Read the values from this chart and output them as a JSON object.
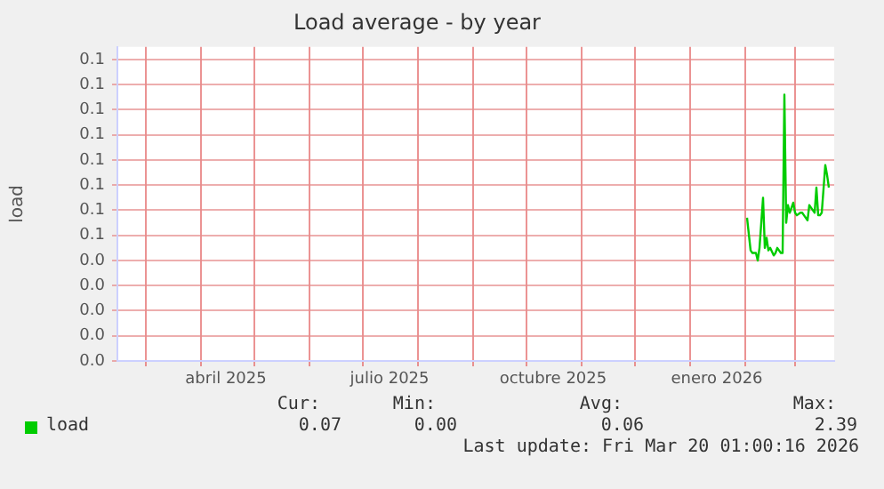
{
  "chart_data": {
    "type": "line",
    "title": "Load average - by year",
    "ylabel": "load",
    "x": [
      "2026-02-02",
      "2026-02-04",
      "2026-02-05",
      "2026-02-07",
      "2026-02-08",
      "2026-02-09",
      "2026-02-11",
      "2026-02-12",
      "2026-02-13",
      "2026-02-14",
      "2026-02-15",
      "2026-02-17",
      "2026-02-18",
      "2026-02-19",
      "2026-02-21",
      "2026-02-22",
      "2026-02-23",
      "2026-02-24",
      "2026-02-25",
      "2026-02-26",
      "2026-02-28",
      "2026-03-01",
      "2026-03-02",
      "2026-03-04",
      "2026-03-05",
      "2026-03-06",
      "2026-03-08",
      "2026-03-09",
      "2026-03-10",
      "2026-03-12",
      "2026-03-13",
      "2026-03-14",
      "2026-03-15",
      "2026-03-16",
      "2026-03-18",
      "2026-03-19",
      "2026-03-20"
    ],
    "series": [
      {
        "name": "load",
        "color": "#00cc00",
        "values": [
          0.057,
          0.044,
          0.043,
          0.043,
          0.04,
          0.045,
          0.065,
          0.045,
          0.049,
          0.044,
          0.045,
          0.042,
          0.043,
          0.045,
          0.043,
          0.043,
          0.106,
          0.055,
          0.062,
          0.059,
          0.063,
          0.059,
          0.058,
          0.059,
          0.059,
          0.058,
          0.056,
          0.062,
          0.061,
          0.059,
          0.069,
          0.058,
          0.058,
          0.059,
          0.078,
          0.074,
          0.069
        ]
      }
    ],
    "xlim": [
      "2025-02-13",
      "2026-03-23"
    ],
    "xticks": [
      {
        "value": "2025-03-01",
        "label": null
      },
      {
        "value": "2025-04-01",
        "label": null
      },
      {
        "value": "2025-04-15",
        "label": "abril 2025"
      },
      {
        "value": "2025-05-01",
        "label": null
      },
      {
        "value": "2025-06-01",
        "label": null
      },
      {
        "value": "2025-07-01",
        "label": null
      },
      {
        "value": "2025-07-16",
        "label": "julio 2025"
      },
      {
        "value": "2025-08-01",
        "label": null
      },
      {
        "value": "2025-09-01",
        "label": null
      },
      {
        "value": "2025-10-01",
        "label": null
      },
      {
        "value": "2025-10-16",
        "label": "octubre 2025"
      },
      {
        "value": "2025-11-01",
        "label": null
      },
      {
        "value": "2025-12-01",
        "label": null
      },
      {
        "value": "2026-01-01",
        "label": null
      },
      {
        "value": "2026-01-16",
        "label": "enero 2026"
      },
      {
        "value": "2026-02-01",
        "label": null
      },
      {
        "value": "2026-03-01",
        "label": null
      }
    ],
    "ylim": [
      0,
      0.125
    ],
    "yticks": [
      {
        "value": 0,
        "label": "0.0"
      },
      {
        "value": 0.01,
        "label": "0.0"
      },
      {
        "value": 0.02,
        "label": "0.0"
      },
      {
        "value": 0.03,
        "label": "0.0"
      },
      {
        "value": 0.04,
        "label": "0.0"
      },
      {
        "value": 0.05,
        "label": "0.1"
      },
      {
        "value": 0.06,
        "label": "0.1"
      },
      {
        "value": 0.07,
        "label": "0.1"
      },
      {
        "value": 0.08,
        "label": "0.1"
      },
      {
        "value": 0.09,
        "label": "0.1"
      },
      {
        "value": 0.1,
        "label": "0.1"
      },
      {
        "value": 0.11,
        "label": "0.1"
      },
      {
        "value": 0.12,
        "label": "0.1"
      }
    ],
    "grid": true,
    "legend": "bottom left",
    "marker": "none",
    "line_style": "solid",
    "annotations": [
      "Cur:",
      "Min:",
      "Avg:",
      "Max:",
      "0.07",
      "0.00",
      "0.06",
      "2.39",
      "Last update: Fri Mar 20 01:00:16 2026"
    ]
  }
}
